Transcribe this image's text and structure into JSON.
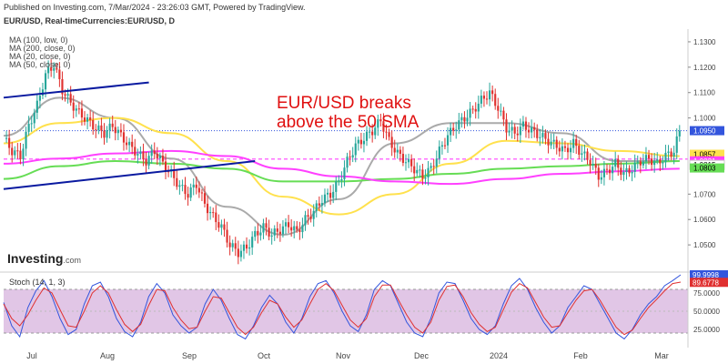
{
  "header": {
    "published": "Published on Investing.com, 7/Mar/2024 - 23:26:03 GMT, Powered by TradingView.",
    "symbol": "EUR/USD, Real-timeCurrencies:EUR/USD, D"
  },
  "ma_legend": [
    "MA (100, low, 0)",
    "MA (200, close, 0)",
    "MA (20, close, 0)",
    "MA (50, close, 0)"
  ],
  "annotation": {
    "line1": "EUR/USD breaks",
    "line2": "above the 50 SMA"
  },
  "logo": {
    "name": "Investing",
    "suffix": ".com"
  },
  "stoch_title": "Stoch (14, 1, 3)",
  "colors": {
    "up": "#26a69a",
    "down": "#e0312e",
    "ma100_low": "#ff40ff",
    "ma200": "#ff40ff",
    "ma20": "#aaaaaa",
    "ma50": "#ffe14d",
    "ma_green": "#66dd55",
    "trendline": "#0a1aa0",
    "stoch_k": "#3355dd",
    "stoch_d": "#e03030",
    "stoch_band": "#d9b8e0",
    "headline": "#e01010"
  },
  "chart_data": [
    {
      "type": "candlestick",
      "title": "EUR/USD, Real-timeCurrencies:EUR/USD, D",
      "x_tick_labels": [
        "Jul",
        "Aug",
        "Sep",
        "Oct",
        "Nov",
        "Dec",
        "2024",
        "Feb",
        "Mar"
      ],
      "y_tick_labels": [
        "1.1300",
        "1.1200",
        "1.1100",
        "1.1000",
        "1.0700",
        "1.0600",
        "1.0500"
      ],
      "price_labels": [
        {
          "label": "1.0950",
          "value": 1.095,
          "color": "#3355dd"
        },
        {
          "label": "1.0857",
          "value": 1.0857,
          "color": "#ffe14d"
        },
        {
          "label": "1.0831",
          "value": 1.0831,
          "color": "#ff40ff"
        },
        {
          "label": "1.0815",
          "value": 1.0815,
          "color": "#ffffff"
        },
        {
          "label": "1.0803",
          "value": 1.0803,
          "color": "#66dd55"
        }
      ],
      "ylim": [
        1.04,
        1.135
      ],
      "close_path": [
        [
          0,
          1.092
        ],
        [
          3,
          1.087
        ],
        [
          6,
          1.085
        ],
        [
          9,
          1.097
        ],
        [
          12,
          1.105
        ],
        [
          15,
          1.117
        ],
        [
          18,
          1.121
        ],
        [
          21,
          1.111
        ],
        [
          24,
          1.106
        ],
        [
          27,
          1.102
        ],
        [
          30,
          1.099
        ],
        [
          33,
          1.096
        ],
        [
          36,
          1.094
        ],
        [
          39,
          1.097
        ],
        [
          42,
          1.093
        ],
        [
          45,
          1.089
        ],
        [
          48,
          1.086
        ],
        [
          51,
          1.083
        ],
        [
          54,
          1.087
        ],
        [
          57,
          1.082
        ],
        [
          60,
          1.078
        ],
        [
          63,
          1.073
        ],
        [
          66,
          1.07
        ],
        [
          69,
          1.074
        ],
        [
          72,
          1.066
        ],
        [
          75,
          1.061
        ],
        [
          78,
          1.057
        ],
        [
          81,
          1.05
        ],
        [
          84,
          1.047
        ],
        [
          87,
          1.049
        ],
        [
          90,
          1.054
        ],
        [
          93,
          1.057
        ],
        [
          96,
          1.054
        ],
        [
          99,
          1.056
        ],
        [
          102,
          1.058
        ],
        [
          105,
          1.055
        ],
        [
          108,
          1.06
        ],
        [
          111,
          1.063
        ],
        [
          114,
          1.068
        ],
        [
          117,
          1.07
        ],
        [
          120,
          1.075
        ],
        [
          123,
          1.083
        ],
        [
          126,
          1.089
        ],
        [
          129,
          1.092
        ],
        [
          132,
          1.095
        ],
        [
          135,
          1.099
        ],
        [
          138,
          1.091
        ],
        [
          141,
          1.086
        ],
        [
          144,
          1.083
        ],
        [
          147,
          1.08
        ],
        [
          150,
          1.077
        ],
        [
          153,
          1.08
        ],
        [
          156,
          1.087
        ],
        [
          159,
          1.093
        ],
        [
          162,
          1.097
        ],
        [
          165,
          1.1
        ],
        [
          168,
          1.103
        ],
        [
          171,
          1.107
        ],
        [
          174,
          1.11
        ],
        [
          177,
          1.104
        ],
        [
          180,
          1.096
        ],
        [
          183,
          1.094
        ],
        [
          186,
          1.097
        ],
        [
          189,
          1.095
        ],
        [
          192,
          1.093
        ],
        [
          195,
          1.091
        ],
        [
          198,
          1.089
        ],
        [
          201,
          1.087
        ],
        [
          204,
          1.09
        ],
        [
          207,
          1.086
        ],
        [
          210,
          1.083
        ],
        [
          213,
          1.077
        ],
        [
          216,
          1.079
        ],
        [
          219,
          1.082
        ],
        [
          222,
          1.078
        ],
        [
          225,
          1.08
        ],
        [
          228,
          1.083
        ],
        [
          231,
          1.084
        ],
        [
          234,
          1.082
        ],
        [
          237,
          1.085
        ],
        [
          240,
          1.087
        ],
        [
          242,
          1.095
        ]
      ],
      "ma_lines": [
        {
          "name": "MA (20, close, 0)",
          "points": [
            [
              0,
              1.093
            ],
            [
              20,
              1.108
            ],
            [
              40,
              1.1
            ],
            [
              60,
              1.084
            ],
            [
              80,
              1.065
            ],
            [
              100,
              1.054
            ],
            [
              120,
              1.068
            ],
            [
              140,
              1.09
            ],
            [
              160,
              1.098
            ],
            [
              180,
              1.098
            ],
            [
              200,
              1.094
            ],
            [
              220,
              1.083
            ],
            [
              242,
              1.083
            ]
          ]
        },
        {
          "name": "MA (50, close, 0)",
          "points": [
            [
              0,
              1.09
            ],
            [
              20,
              1.098
            ],
            [
              40,
              1.1
            ],
            [
              60,
              1.094
            ],
            [
              80,
              1.083
            ],
            [
              100,
              1.069
            ],
            [
              120,
              1.062
            ],
            [
              140,
              1.07
            ],
            [
              160,
              1.082
            ],
            [
              180,
              1.091
            ],
            [
              200,
              1.09
            ],
            [
              220,
              1.087
            ],
            [
              242,
              1.085
            ]
          ]
        },
        {
          "name": "MA (100, low, 0)",
          "points": [
            [
              0,
              1.076
            ],
            [
              20,
              1.081
            ],
            [
              40,
              1.083
            ],
            [
              60,
              1.082
            ],
            [
              80,
              1.08
            ],
            [
              100,
              1.075
            ],
            [
              120,
              1.075
            ],
            [
              140,
              1.076
            ],
            [
              160,
              1.078
            ],
            [
              180,
              1.08
            ],
            [
              200,
              1.081
            ],
            [
              220,
              1.082
            ],
            [
              242,
              1.083
            ]
          ]
        },
        {
          "name": "MA (200, close, 0)",
          "points": [
            [
              0,
              1.082
            ],
            [
              20,
              1.084
            ],
            [
              40,
              1.086
            ],
            [
              60,
              1.087
            ],
            [
              80,
              1.085
            ],
            [
              100,
              1.08
            ],
            [
              120,
              1.077
            ],
            [
              140,
              1.075
            ],
            [
              160,
              1.074
            ],
            [
              180,
              1.076
            ],
            [
              200,
              1.078
            ],
            [
              220,
              1.079
            ],
            [
              242,
              1.08
            ]
          ]
        }
      ],
      "trendlines": [
        [
          [
            0,
            1.108
          ],
          [
            52,
            1.114
          ]
        ],
        [
          [
            0,
            1.072
          ],
          [
            90,
            1.083
          ]
        ]
      ]
    },
    {
      "type": "line",
      "title": "Stoch (14, 1, 3)",
      "y_tick_labels": [
        "75.0000",
        "50.0000",
        "25.0000"
      ],
      "value_labels": [
        "99.9998",
        "89.6778"
      ],
      "ylim": [
        0,
        100
      ],
      "bands": [
        20,
        80
      ],
      "series": [
        {
          "name": "K",
          "values": [
            62,
            30,
            15,
            55,
            78,
            92,
            70,
            40,
            18,
            25,
            60,
            85,
            90,
            70,
            40,
            22,
            15,
            35,
            70,
            88,
            75,
            45,
            30,
            20,
            28,
            60,
            80,
            65,
            40,
            18,
            12,
            30,
            55,
            72,
            60,
            35,
            20,
            40,
            70,
            88,
            92,
            75,
            50,
            30,
            22,
            45,
            80,
            92,
            85,
            60,
            35,
            20,
            15,
            40,
            75,
            90,
            88,
            65,
            40,
            25,
            18,
            30,
            60,
            85,
            95,
            80,
            55,
            35,
            20,
            30,
            55,
            70,
            85,
            80,
            60,
            40,
            20,
            12,
            25,
            45,
            60,
            70,
            85,
            92,
            100
          ]
        },
        {
          "name": "D",
          "values": [
            60,
            40,
            30,
            45,
            65,
            82,
            75,
            52,
            30,
            28,
            50,
            75,
            85,
            75,
            52,
            32,
            22,
            32,
            58,
            80,
            78,
            55,
            38,
            26,
            28,
            50,
            70,
            68,
            48,
            28,
            18,
            28,
            48,
            65,
            60,
            42,
            28,
            38,
            60,
            80,
            88,
            78,
            58,
            38,
            28,
            40,
            70,
            86,
            86,
            65,
            45,
            28,
            20,
            35,
            65,
            84,
            86,
            70,
            48,
            32,
            22,
            28,
            52,
            76,
            88,
            82,
            62,
            42,
            28,
            30,
            48,
            65,
            78,
            80,
            65,
            46,
            28,
            18,
            24,
            40,
            55,
            66,
            78,
            88,
            90
          ]
        }
      ]
    }
  ]
}
